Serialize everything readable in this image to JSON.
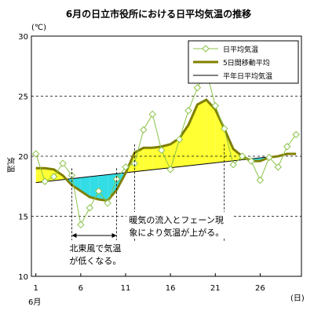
{
  "chart_data": {
    "type": "line",
    "title": "6月の日立市役所における日平均気温の推移",
    "ylabel": "気温",
    "y_unit": "(℃)",
    "x_unit": "(日)",
    "month_label": "6月",
    "ylim": [
      10,
      30
    ],
    "y_ticks": [
      10,
      15,
      20,
      25,
      30
    ],
    "x_ticks": [
      1,
      6,
      11,
      16,
      21,
      26
    ],
    "xlim": [
      1,
      30
    ],
    "grid": "horizontal-dashed",
    "legend_position": "top-right",
    "series": [
      {
        "name": "日平均気温",
        "color": "#8bc34a",
        "x": [
          1,
          2,
          3,
          4,
          5,
          6,
          7,
          8,
          9,
          10,
          11,
          12,
          13,
          14,
          15,
          16,
          17,
          18,
          19,
          20,
          21,
          22,
          23,
          24,
          25,
          26,
          27,
          28,
          29,
          30
        ],
        "y": [
          20.2,
          17.9,
          18.3,
          19.4,
          18.4,
          14.3,
          15.7,
          17.1,
          16.1,
          18.1,
          19.1,
          19.4,
          22.2,
          23.5,
          20.5,
          18.9,
          21.4,
          23.8,
          25.7,
          27.1,
          24.2,
          22.3,
          19.3,
          20.0,
          19.6,
          18.0,
          19.9,
          19.1,
          20.8,
          21.8
        ]
      },
      {
        "name": "5日間移動平均",
        "color": "#7f7f00",
        "x": [
          1,
          2,
          3,
          4,
          5,
          6,
          7,
          8,
          9,
          10,
          11,
          12,
          13,
          14,
          15,
          16,
          17,
          18,
          19,
          20,
          21,
          22,
          23,
          24,
          25,
          26,
          27,
          28,
          29,
          30
        ],
        "y": [
          19.0,
          19.0,
          18.9,
          18.4,
          17.6,
          17.1,
          16.6,
          16.4,
          16.3,
          17.2,
          18.6,
          20.3,
          20.7,
          20.7,
          20.8,
          21.0,
          21.5,
          22.6,
          24.3,
          24.7,
          23.9,
          22.3,
          20.6,
          20.0,
          19.6,
          19.6,
          19.9,
          20.0,
          20.2,
          20.2
        ]
      },
      {
        "name": "平年日平均気温",
        "color": "#000000",
        "x": [
          1,
          30
        ],
        "y": [
          17.8,
          20.2
        ]
      }
    ],
    "annotations": [
      {
        "text_lines": [
          "北東風で気温",
          "が低くなる。"
        ],
        "x_range": [
          5,
          10
        ]
      },
      {
        "text_lines": [
          "暖気の流入とフェーン現",
          "象により気温が上がる。"
        ],
        "x_range": [
          12,
          22
        ]
      }
    ],
    "fill_above_color": "#ffff33",
    "fill_below_color": "#33dde6"
  }
}
